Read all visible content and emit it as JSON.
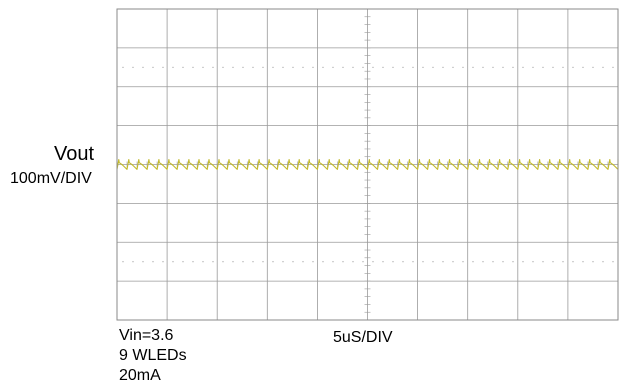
{
  "chart_data": {
    "type": "line",
    "title": "",
    "grid": true,
    "divisions": {
      "horizontal": 10,
      "vertical": 8
    },
    "channel": {
      "name": "Vout",
      "scale": "100mV/DIV",
      "color": "#c2ba2a",
      "waveform": "sawtooth ripple",
      "period_us": 1.0,
      "ripple_peak_to_peak_mV": 25,
      "offset_div": 0
    },
    "timebase": {
      "label": "5uS/DIV",
      "us_per_div": 5,
      "span_us": 50
    },
    "conditions": [
      "Vin=3.6",
      "9 WLEDs",
      "20mA"
    ],
    "colors": {
      "grid": "#9a9a9a",
      "frame": "#8a8a8a",
      "background": "#ffffff"
    }
  }
}
